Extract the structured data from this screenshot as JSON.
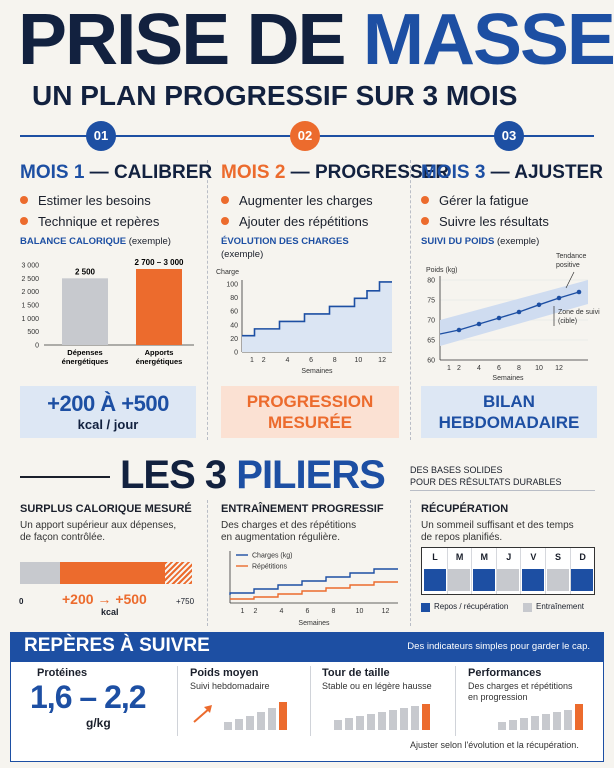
{
  "title": {
    "line1_a": "PRISE DE ",
    "line1_b": "MASSE",
    "subtitle": "UN PLAN PROGRESSIF SUR 3 MOIS"
  },
  "steps": [
    {
      "num": "01",
      "head_a": "MOIS 1",
      "head_b": " — CALIBRER",
      "bullets": [
        "Estimer les besoins",
        "Technique et repères"
      ],
      "chart_title": "BALANCE CALORIQUE",
      "chart_sub": "(exemple)",
      "box_line1": "+200 À +500",
      "box_line2": "kcal / jour"
    },
    {
      "num": "02",
      "head_a": "MOIS 2",
      "head_b": " — PROGRESSER",
      "bullets": [
        "Augmenter les charges",
        "Ajouter des répétitions"
      ],
      "chart_title": "ÉVOLUTION DES CHARGES",
      "chart_sub": "(exemple)",
      "box_line1": "PROGRESSION",
      "box_line2": "MESURÉE"
    },
    {
      "num": "03",
      "head_a": "MOIS 3",
      "head_b": " — AJUSTER",
      "bullets": [
        "Gérer la fatigue",
        "Suivre les résultats"
      ],
      "chart_title": "SUIVI DU POIDS",
      "chart_sub": "(exemple)",
      "box_line1": "BILAN",
      "box_line2": "HEBDOMADAIRE"
    }
  ],
  "charts": {
    "calorie": {
      "y_ticks": [
        "3 000",
        "2 500",
        "2 000",
        "1 500",
        "1 000",
        "500",
        "0"
      ],
      "bars": [
        {
          "label1": "Dépenses",
          "label2": "énergétiques",
          "value_label": "2 500",
          "value": 2500,
          "color": "#c7c9ce"
        },
        {
          "label1": "Apports",
          "label2": "énergétiques",
          "value_label": "2 700 – 3 000",
          "value": 2850,
          "color": "#ec6b2d"
        }
      ],
      "ymax": 3000
    },
    "charges": {
      "ylabel": "Charge",
      "xlabel": "Semaines",
      "y_ticks": [
        "100",
        "80",
        "60",
        "40",
        "20",
        "0"
      ],
      "x_ticks": [
        "1",
        "2",
        "4",
        "6",
        "8",
        "10",
        "12"
      ],
      "steps": [
        24,
        34,
        34,
        45,
        45,
        56,
        56,
        67,
        67,
        79,
        90,
        103
      ]
    },
    "poids": {
      "ylabel": "Poids (kg)",
      "xlabel": "Semaines",
      "y_ticks": [
        "80",
        "75",
        "70",
        "65",
        "60"
      ],
      "x_ticks": [
        "1",
        "2",
        "4",
        "6",
        "8",
        "10",
        "12"
      ],
      "points": [
        [
          2,
          67.5
        ],
        [
          4,
          69
        ],
        [
          6,
          70.5
        ],
        [
          8,
          72
        ],
        [
          10,
          73.8
        ],
        [
          12,
          75.5
        ],
        [
          14,
          77
        ]
      ],
      "trend_label1": "Tendance",
      "trend_label2": "positive",
      "zone_label1": "Zone de suivi",
      "zone_label2": "(cible)"
    }
  },
  "pillars": {
    "heading_a": "LES 3 ",
    "heading_b": "PILIERS",
    "side_line1": "DES BASES SOLIDES",
    "side_line2": "POUR DES RÉSULTATS DURABLES"
  },
  "pillar_items": [
    {
      "title": "SURPLUS CALORIQUE MESURÉ",
      "text1": "Un apport supérieur aux dépenses,",
      "text2": "de façon contrôlée.",
      "scale_left": "0",
      "scale_right": "+750",
      "range_label": "+200 → +500",
      "range_unit": "kcal"
    },
    {
      "title": "ENTRAÎNEMENT PROGRESSIF",
      "text1": "Des charges et des répétitions",
      "text2": "en augmentation régulière.",
      "legend1": "Charges (kg)",
      "legend2": "Répétitions",
      "xlabel": "Semaines",
      "x_ticks": [
        "1",
        "2",
        "4",
        "6",
        "8",
        "10",
        "12"
      ]
    },
    {
      "title": "RÉCUPÉRATION",
      "text1": "Un sommeil suffisant et des temps",
      "text2": "de repos planifiés.",
      "days": [
        {
          "d": "L",
          "rest": true
        },
        {
          "d": "M",
          "rest": false
        },
        {
          "d": "M",
          "rest": true
        },
        {
          "d": "J",
          "rest": false
        },
        {
          "d": "V",
          "rest": true
        },
        {
          "d": "S",
          "rest": false
        },
        {
          "d": "D",
          "rest": true
        }
      ],
      "legend_rest": "Repos / récupération",
      "legend_train": "Entraînement"
    }
  ],
  "markers": {
    "heading": "REPÈRES À SUIVRE",
    "tagline": "Des indicateurs simples pour garder le cap.",
    "items": [
      {
        "title": "Protéines",
        "value": "1,6 – 2,2",
        "unit": "g/kg"
      },
      {
        "title": "Poids moyen",
        "text1": "Suivi hebdomadaire",
        "text2": ""
      },
      {
        "title": "Tour de taille",
        "text1": "Stable ou en légère hausse",
        "text2": ""
      },
      {
        "title": "Performances",
        "text1": "Des charges et répétitions",
        "text2": "en progression"
      }
    ],
    "footer": "Ajuster selon l'évolution et la récupération."
  }
}
